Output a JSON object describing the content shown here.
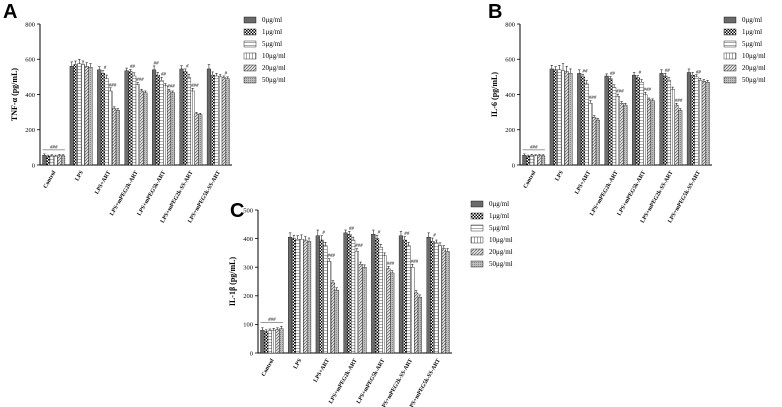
{
  "chart_data": [
    {
      "panel": "A",
      "type": "bar",
      "ylabel": "TNF-α (pg/mL)",
      "ylim": [
        0,
        800
      ],
      "yticks": [
        "0",
        "200",
        "400",
        "600",
        "800"
      ],
      "categories": [
        "Control",
        "LPS",
        "LPS+ART",
        "LPS+mPEG2k-ART",
        "LPS+mPEG5k-ART",
        "LPS+mPEG2k-SS-ART",
        "LPS+mPEG5k-SS-ART"
      ],
      "series": [
        {
          "name": "0μg/ml",
          "values": [
            55,
            560,
            540,
            535,
            540,
            545,
            545
          ],
          "errors": [
            8,
            25,
            18,
            15,
            22,
            18,
            25
          ]
        },
        {
          "name": "1μg/ml",
          "values": [
            50,
            570,
            520,
            530,
            510,
            530,
            510
          ],
          "errors": [
            6,
            20,
            15,
            12,
            15,
            15,
            18
          ]
        },
        {
          "name": "5μg/ml",
          "values": [
            52,
            575,
            490,
            505,
            480,
            495,
            505
          ],
          "errors": [
            6,
            25,
            20,
            18,
            18,
            20,
            15
          ]
        },
        {
          "name": "10μg/ml",
          "values": [
            50,
            570,
            420,
            455,
            450,
            420,
            500
          ],
          "errors": [
            6,
            20,
            18,
            12,
            12,
            15,
            12
          ]
        },
        {
          "name": "20μg/ml",
          "values": [
            54,
            560,
            320,
            420,
            420,
            290,
            495
          ],
          "errors": [
            6,
            20,
            10,
            10,
            10,
            8,
            10
          ]
        },
        {
          "name": "50μg/ml",
          "values": [
            52,
            555,
            310,
            410,
            410,
            285,
            490
          ],
          "errors": [
            6,
            20,
            10,
            10,
            10,
            8,
            10
          ]
        }
      ],
      "annotations": [
        {
          "text": "###",
          "category": 0
        },
        {
          "text": "#",
          "category": 2,
          "series": 1
        },
        {
          "text": "###",
          "category": 2,
          "series": 3
        },
        {
          "text": "##",
          "category": 3,
          "series": 1
        },
        {
          "text": "###",
          "category": 3,
          "series": 3
        },
        {
          "text": "##",
          "category": 4,
          "series": 0
        },
        {
          "text": "##",
          "category": 4,
          "series": 2
        },
        {
          "text": "###",
          "category": 4,
          "series": 4
        },
        {
          "text": "#",
          "category": 5,
          "series": 1
        },
        {
          "text": "###",
          "category": 5,
          "series": 3
        },
        {
          "text": "#",
          "category": 6,
          "series": 4
        }
      ]
    },
    {
      "panel": "B",
      "type": "bar",
      "ylabel": "IL-6 (pg/mL)",
      "ylim": [
        0,
        800
      ],
      "yticks": [
        "0",
        "200",
        "400",
        "600",
        "800"
      ],
      "categories": [
        "Control",
        "LPS",
        "LPS+ART",
        "LPS+mPEG2k-ART",
        "LPS+mPEG5k-ART",
        "LPS+mPEG2k-SS-ART",
        "LPS+mPEG5k-SS-ART"
      ],
      "series": [
        {
          "name": "0μg/ml",
          "values": [
            55,
            545,
            520,
            505,
            510,
            520,
            525
          ],
          "errors": [
            8,
            20,
            20,
            12,
            15,
            20,
            20
          ]
        },
        {
          "name": "1μg/ml",
          "values": [
            50,
            540,
            500,
            490,
            495,
            505,
            510
          ],
          "errors": [
            6,
            18,
            15,
            12,
            12,
            15,
            15
          ]
        },
        {
          "name": "5μg/ml",
          "values": [
            55,
            540,
            460,
            440,
            470,
            480,
            500
          ],
          "errors": [
            6,
            25,
            18,
            15,
            15,
            15,
            12
          ]
        },
        {
          "name": "10μg/ml",
          "values": [
            52,
            535,
            350,
            390,
            400,
            430,
            480
          ],
          "errors": [
            6,
            40,
            15,
            12,
            12,
            12,
            12
          ]
        },
        {
          "name": "20μg/ml",
          "values": [
            54,
            530,
            270,
            350,
            370,
            340,
            475
          ],
          "errors": [
            6,
            30,
            10,
            10,
            10,
            10,
            10
          ]
        },
        {
          "name": "50μg/ml",
          "values": [
            52,
            520,
            255,
            340,
            365,
            310,
            470
          ],
          "errors": [
            6,
            25,
            10,
            10,
            10,
            10,
            10
          ]
        }
      ],
      "annotations": [
        {
          "text": "###",
          "category": 0
        },
        {
          "text": "##",
          "category": 2,
          "series": 1
        },
        {
          "text": "###",
          "category": 2,
          "series": 3
        },
        {
          "text": "##",
          "category": 3,
          "series": 1
        },
        {
          "text": "###",
          "category": 3,
          "series": 3
        },
        {
          "text": "#",
          "category": 4,
          "series": 1
        },
        {
          "text": "###",
          "category": 4,
          "series": 3
        },
        {
          "text": "##",
          "category": 5,
          "series": 1
        },
        {
          "text": "###",
          "category": 5,
          "series": 4
        },
        {
          "text": "##",
          "category": 6,
          "series": 2
        }
      ]
    },
    {
      "panel": "C",
      "type": "bar",
      "ylabel": "IL-1β (pg/mL)",
      "ylim": [
        0,
        500
      ],
      "yticks": [
        "0",
        "100",
        "200",
        "300",
        "400",
        "500"
      ],
      "categories": [
        "Control",
        "LPS",
        "LPS+ART",
        "LPS+mPEG2k-ART",
        "LPS+mPEG5k-ART",
        "LPS+mPEG2k-SS-ART",
        "LPS+mPEG5k-SS-ART"
      ],
      "series": [
        {
          "name": "0μg/ml",
          "values": [
            80,
            405,
            410,
            420,
            415,
            410,
            405
          ],
          "errors": [
            8,
            15,
            20,
            10,
            15,
            15,
            15
          ]
        },
        {
          "name": "1μg/ml",
          "values": [
            75,
            400,
            395,
            415,
            400,
            395,
            390
          ],
          "errors": [
            6,
            12,
            15,
            10,
            12,
            12,
            12
          ]
        },
        {
          "name": "5μg/ml",
          "values": [
            78,
            398,
            375,
            395,
            370,
            375,
            385
          ],
          "errors": [
            6,
            12,
            12,
            10,
            10,
            12,
            10
          ]
        },
        {
          "name": "10μg/ml",
          "values": [
            80,
            398,
            320,
            355,
            340,
            300,
            375
          ],
          "errors": [
            6,
            15,
            10,
            10,
            10,
            10,
            10
          ]
        },
        {
          "name": "20μg/ml",
          "values": [
            82,
            395,
            245,
            310,
            295,
            210,
            365
          ],
          "errors": [
            6,
            12,
            8,
            8,
            8,
            8,
            10
          ]
        },
        {
          "name": "50μg/ml",
          "values": [
            85,
            390,
            220,
            300,
            280,
            195,
            355
          ],
          "errors": [
            8,
            12,
            8,
            8,
            8,
            8,
            10
          ]
        }
      ],
      "annotations": [
        {
          "text": "###",
          "category": 0
        },
        {
          "text": "#",
          "category": 2,
          "series": 1
        },
        {
          "text": "###",
          "category": 2,
          "series": 3
        },
        {
          "text": "##",
          "category": 3,
          "series": 1
        },
        {
          "text": "###",
          "category": 3,
          "series": 3
        },
        {
          "text": "#",
          "category": 4,
          "series": 1
        },
        {
          "text": "###",
          "category": 4,
          "series": 4
        },
        {
          "text": "##",
          "category": 5,
          "series": 1
        },
        {
          "text": "###",
          "category": 5,
          "series": 3
        },
        {
          "text": "#",
          "category": 6,
          "series": 1
        }
      ]
    }
  ]
}
